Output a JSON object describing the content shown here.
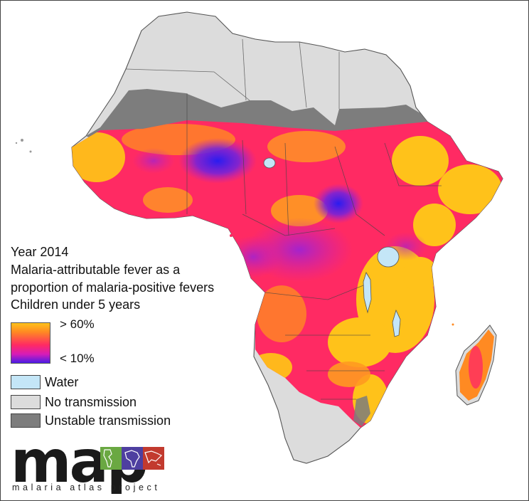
{
  "legend": {
    "year": "Year 2014",
    "title_line1": "Malaria-attributable fever as a",
    "title_line2": "proportion of malaria-positive fevers",
    "title_line3": "Children under 5 years",
    "ramp_high": "> 60%",
    "ramp_low": "< 10%",
    "water": "Water",
    "no_transmission": "No transmission",
    "unstable_transmission": "Unstable transmission"
  },
  "logo": {
    "wordmark": "map",
    "subtitle": "malaria atlas project"
  },
  "colors": {
    "high": "#ffc21a",
    "mid_high": "#ff8a22",
    "mid": "#ff2a63",
    "mid_low": "#d61cb8",
    "low": "#4a1ce6",
    "water": "#c4e6f7",
    "no_transmission": "#dcdcdc",
    "unstable_transmission": "#7d7d7d",
    "logo_green": "#6aa842",
    "logo_purple": "#4e3fa0",
    "logo_red": "#c23a2e"
  }
}
